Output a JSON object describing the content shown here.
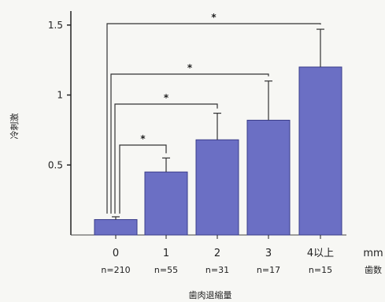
{
  "chart_data": {
    "type": "bar",
    "categories": [
      "0",
      "1",
      "2",
      "3",
      "4以上"
    ],
    "values": [
      0.11,
      0.45,
      0.68,
      0.82,
      1.2
    ],
    "error_upper": [
      0.13,
      0.55,
      0.87,
      1.1,
      1.47
    ],
    "n_labels": [
      "n=210",
      "n=55",
      "n=31",
      "n=17",
      "n=15"
    ],
    "yticks": [
      {
        "value": 0.5,
        "label": "0.5"
      },
      {
        "value": 1,
        "label": "1"
      },
      {
        "value": 1.5,
        "label": "1.5"
      }
    ],
    "ylim": [
      0,
      1.6
    ],
    "ylabel": "冷刺激",
    "xlabel": "歯肉退縮量",
    "x_unit": "mm",
    "n_unit": "歯数",
    "bar_color": "#6b6fc4",
    "significance": [
      {
        "from": 0,
        "to": 1,
        "label": "*"
      },
      {
        "from": 0,
        "to": 2,
        "label": "*"
      },
      {
        "from": 0,
        "to": 3,
        "label": "*"
      },
      {
        "from": 0,
        "to": 4,
        "label": "*"
      }
    ]
  }
}
